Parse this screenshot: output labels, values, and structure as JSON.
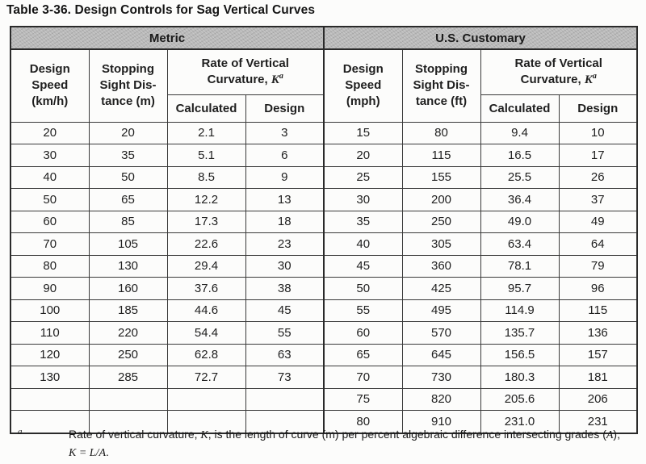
{
  "title": "Table 3-36. Design Controls for Sag Vertical Curves",
  "table": {
    "sections": {
      "metric": {
        "title": "Metric"
      },
      "us": {
        "title": "U.S. Customary"
      }
    },
    "headers": {
      "metric_speed": [
        "Design",
        "Speed",
        "(km/h)"
      ],
      "metric_ssd": [
        "Stopping",
        "Sight Dis-",
        "tance (m)"
      ],
      "us_speed": [
        "Design",
        "Speed",
        "(mph)"
      ],
      "us_ssd": [
        "Stopping",
        "Sight Dis-",
        "tance (ft)"
      ],
      "rate_line1": "Rate of Vertical",
      "rate_line2_prefix": "Curvature, ",
      "rate_k": "K",
      "rate_sup": "a",
      "calculated": "Calculated",
      "design": "Design"
    },
    "rows": [
      {
        "cells": [
          "20",
          "20",
          "2.1",
          "3",
          "15",
          "80",
          "9.4",
          "10"
        ]
      },
      {
        "cells": [
          "30",
          "35",
          "5.1",
          "6",
          "20",
          "115",
          "16.5",
          "17"
        ]
      },
      {
        "cells": [
          "40",
          "50",
          "8.5",
          "9",
          "25",
          "155",
          "25.5",
          "26"
        ]
      },
      {
        "cells": [
          "50",
          "65",
          "12.2",
          "13",
          "30",
          "200",
          "36.4",
          "37"
        ]
      },
      {
        "cells": [
          "60",
          "85",
          "17.3",
          "18",
          "35",
          "250",
          "49.0",
          "49"
        ]
      },
      {
        "cells": [
          "70",
          "105",
          "22.6",
          "23",
          "40",
          "305",
          "63.4",
          "64"
        ]
      },
      {
        "cells": [
          "80",
          "130",
          "29.4",
          "30",
          "45",
          "360",
          "78.1",
          "79"
        ]
      },
      {
        "cells": [
          "90",
          "160",
          "37.6",
          "38",
          "50",
          "425",
          "95.7",
          "96"
        ]
      },
      {
        "cells": [
          "100",
          "185",
          "44.6",
          "45",
          "55",
          "495",
          "114.9",
          "115"
        ]
      },
      {
        "cells": [
          "110",
          "220",
          "54.4",
          "55",
          "60",
          "570",
          "135.7",
          "136"
        ]
      },
      {
        "cells": [
          "120",
          "250",
          "62.8",
          "63",
          "65",
          "645",
          "156.5",
          "157"
        ]
      },
      {
        "cells": [
          "130",
          "285",
          "72.7",
          "73",
          "70",
          "730",
          "180.3",
          "181"
        ]
      },
      {
        "cells": [
          "",
          "",
          "",
          "",
          "75",
          "820",
          "205.6",
          "206"
        ]
      },
      {
        "cells": [
          "",
          "",
          "",
          "",
          "80",
          "910",
          "231.0",
          "231"
        ]
      }
    ]
  },
  "footnote": {
    "marker": "a",
    "t1": "Rate of vertical curvature, ",
    "k1": "K",
    "t2": ", is the length of curve (m) per percent algebraic difference intersecting grades (",
    "a1": "A",
    "t3": "), ",
    "formula": "K = L/A",
    "t4": "."
  }
}
